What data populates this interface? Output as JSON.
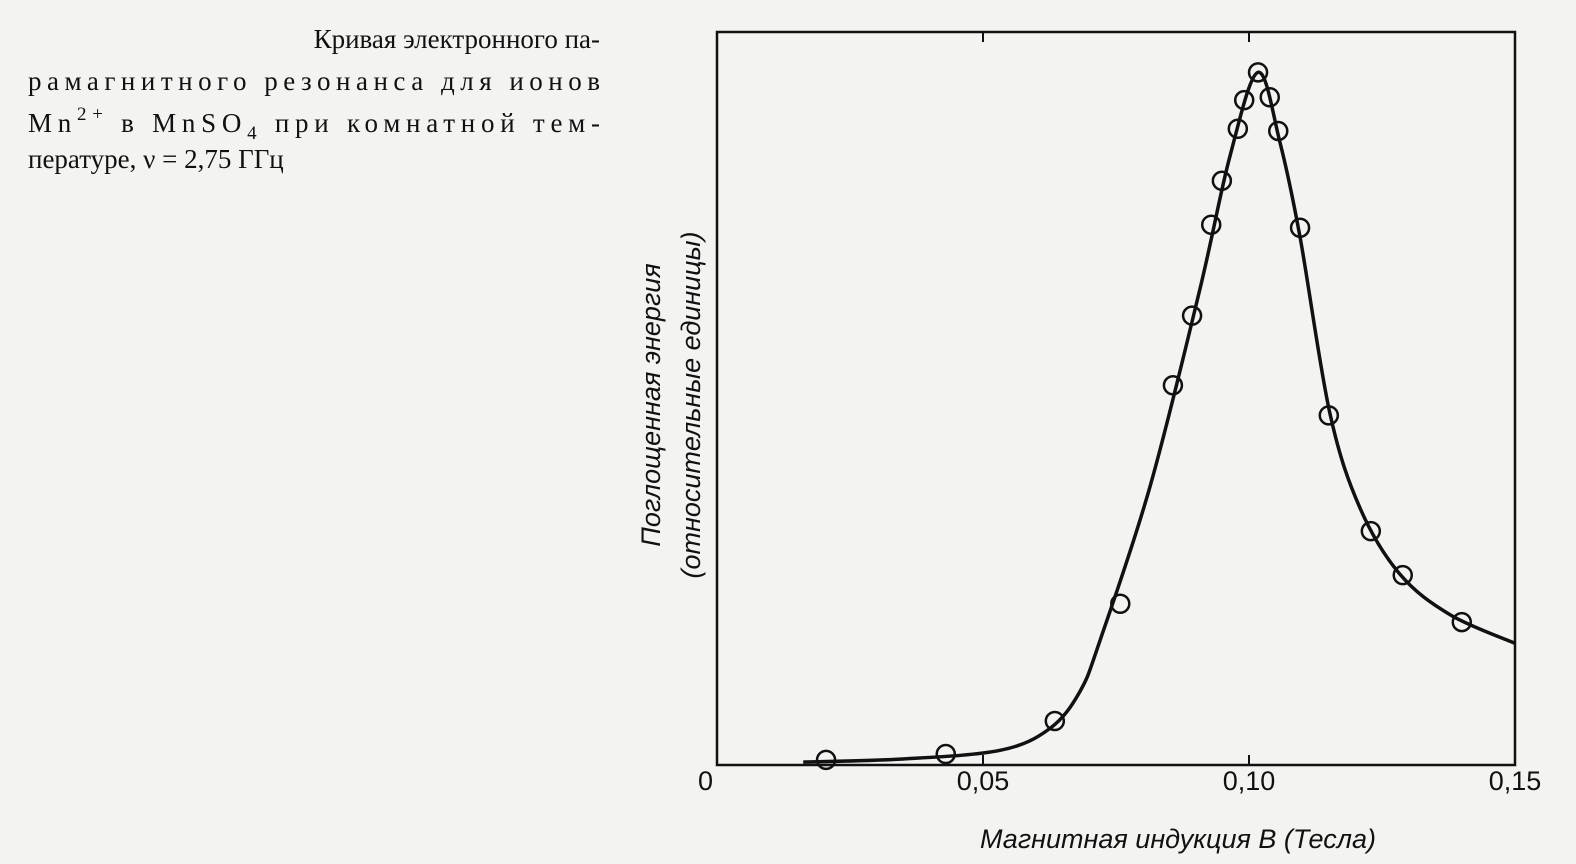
{
  "chart_data": {
    "type": "line",
    "caption": [
      [
        "Кривая электронного па-"
      ],
      [
        "рамагнитного резонанса для ионов"
      ],
      [
        "Mn",
        "2+",
        " в MnSO",
        "4",
        " при комнатной тем-"
      ],
      [
        "пературе, ν = 2,75 ГГц"
      ]
    ],
    "x_label": "Магнитная индукция B (Тесла)",
    "y_label": [
      "Поглощенная энергия",
      "(относительные единицы)"
    ],
    "xlim": [
      0,
      0.15
    ],
    "ylim": [
      0,
      1
    ],
    "xticks": [
      0,
      {
        "value": 0.05,
        "label": "0,05"
      },
      {
        "value": 0.1,
        "label": "0,10"
      },
      {
        "value": 0.15,
        "label": "0,15"
      }
    ],
    "series": [
      {
        "kind": "line",
        "color": "#111111",
        "x": [
          0.0162,
          0.0344,
          0.0532,
          0.0626,
          0.0682,
          0.072,
          0.0814,
          0.0908,
          0.0964,
          0.1017,
          0.1058,
          0.1096,
          0.1152,
          0.1209,
          0.1284,
          0.1378,
          0.15
        ],
        "values": [
          0.004,
          0.008,
          0.02,
          0.05,
          0.1,
          0.17,
          0.38,
          0.65,
          0.83,
          0.945,
          0.85,
          0.72,
          0.48,
          0.35,
          0.26,
          0.205,
          0.166
        ]
      },
      {
        "kind": "scatter",
        "color": "#111111",
        "x": [
          0.0205,
          0.043,
          0.0635,
          0.0758,
          0.0857,
          0.0893,
          0.0929,
          0.0949,
          0.0979,
          0.0991,
          0.1017,
          0.1039,
          0.1055,
          0.1096,
          0.115,
          0.1229,
          0.1289,
          0.14
        ],
        "values": [
          0.007,
          0.015,
          0.06,
          0.22,
          0.518,
          0.613,
          0.737,
          0.797,
          0.868,
          0.907,
          0.945,
          0.911,
          0.865,
          0.733,
          0.477,
          0.319,
          0.259,
          0.195
        ]
      }
    ]
  }
}
